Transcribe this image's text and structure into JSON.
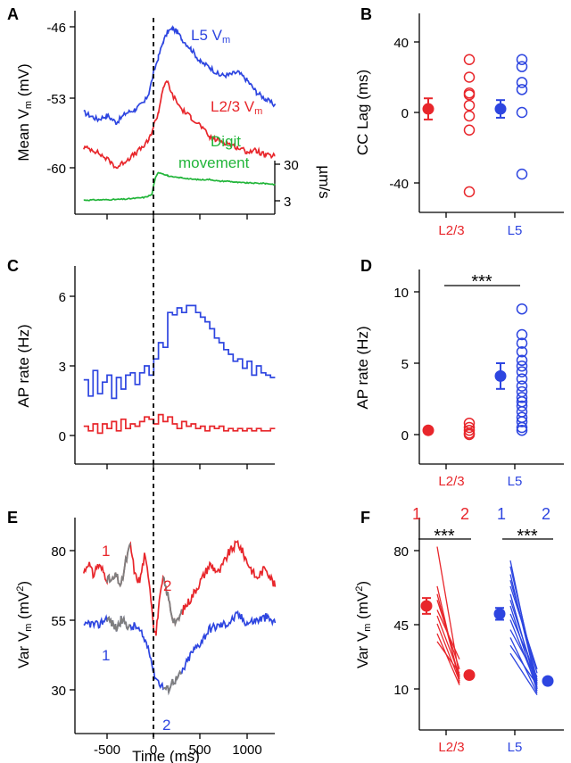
{
  "colors": {
    "red": "#e8262b",
    "blue": "#2d45e0",
    "green": "#22b53a",
    "gray": "#7f7f7f",
    "black": "#000000"
  },
  "panels": {
    "A": {
      "label": "A",
      "ylabel": "Mean V",
      "ylabel_sub": "m",
      "ylabel_unit": " (mV)",
      "yticks": [
        "-46",
        "-53",
        "-60"
      ],
      "right_ticks": [
        "30",
        "3"
      ],
      "right_label": "µm/s",
      "l5": {
        "text": "L5 V",
        "sub": "m"
      },
      "l23": {
        "text": "L2/3 V",
        "sub": "m"
      },
      "digit_line1": "Digit",
      "digit_line2": "movement"
    },
    "B": {
      "label": "B",
      "ylabel": "CC Lag (ms)",
      "yticks": [
        "40",
        "0",
        "-40"
      ],
      "xcats": [
        "L2/3",
        "L5"
      ]
    },
    "C": {
      "label": "C",
      "ylabel": "AP rate (Hz)",
      "yticks": [
        "6",
        "3",
        "0"
      ]
    },
    "D": {
      "label": "D",
      "ylabel": "AP rate (Hz)",
      "yticks": [
        "10",
        "5",
        "0"
      ],
      "xcats": [
        "L2/3",
        "L5"
      ],
      "sig": "***"
    },
    "E": {
      "label": "E",
      "ylabel": "Var V",
      "ylabel_sub": "m",
      "ylabel_unit": " (mV",
      "ylabel_sup": "2",
      "ylabel_end": ")",
      "yticks": [
        "80",
        "55",
        "30"
      ],
      "xticks": [
        "-500",
        "0",
        "500",
        "1000"
      ],
      "xlabel": "Time (ms)",
      "red1": "1",
      "red2": "2",
      "blue1": "1",
      "blue2": "2"
    },
    "F": {
      "label": "F",
      "ylabel": "Var V",
      "ylabel_sub": "m",
      "ylabel_unit": " (mV",
      "ylabel_sup": "2",
      "ylabel_end": ")",
      "yticks": [
        "80",
        "45",
        "10"
      ],
      "xcats": [
        "L2/3",
        "L5"
      ],
      "red1": "1",
      "red2": "2",
      "blue1": "1",
      "blue2": "2",
      "sig_left": "***",
      "sig_right": "***"
    }
  },
  "chart_data": [
    {
      "panel": "A",
      "type": "line",
      "x_range": [
        -750,
        1300
      ],
      "ylabel": "Mean Vm (mV)",
      "right_axis_label": "µm/s",
      "series": [
        {
          "name": "L5 Vm",
          "color": "#2d45e0",
          "x": [
            -750,
            -600,
            -500,
            -400,
            -300,
            -200,
            -100,
            -50,
            0,
            50,
            100,
            150,
            200,
            250,
            300,
            400,
            500,
            600,
            700,
            800,
            900,
            1000,
            1100,
            1200,
            1300
          ],
          "y": [
            -54.5,
            -55.2,
            -54.8,
            -55.5,
            -54.6,
            -54.2,
            -53.5,
            -52.5,
            -50.5,
            -49.0,
            -47.5,
            -46.5,
            -46.2,
            -46.5,
            -47.2,
            -48.2,
            -49.5,
            -50.0,
            -50.8,
            -50.8,
            -50.5,
            -51.3,
            -52.5,
            -53.2,
            -53.8
          ]
        },
        {
          "name": "L2/3 Vm",
          "color": "#e8262b",
          "x": [
            -750,
            -650,
            -550,
            -450,
            -400,
            -300,
            -200,
            -100,
            -50,
            0,
            50,
            100,
            150,
            200,
            300,
            400,
            500,
            600,
            700,
            800,
            900,
            1000,
            1100,
            1200,
            1300
          ],
          "y": [
            -58.0,
            -58.2,
            -58.8,
            -59.5,
            -60.0,
            -59.3,
            -58.6,
            -57.8,
            -57.2,
            -55.8,
            -54.5,
            -52.0,
            -51.5,
            -52.8,
            -54.2,
            -55.0,
            -55.8,
            -57.0,
            -57.3,
            -57.6,
            -58.0,
            -58.4,
            -58.3,
            -58.8,
            -58.8
          ]
        },
        {
          "name": "Digit movement",
          "color": "#22b53a",
          "x": [
            -750,
            -500,
            -300,
            -100,
            -20,
            0,
            20,
            50,
            100,
            150,
            200,
            300,
            400,
            500,
            600,
            700,
            800,
            900,
            1000,
            1100,
            1200,
            1300
          ],
          "y": [
            3.5,
            3.8,
            4.2,
            5.5,
            7.5,
            15,
            20,
            24,
            23,
            21.5,
            20.5,
            20,
            19,
            18.5,
            18.8,
            17.5,
            17.5,
            16.5,
            16.2,
            16,
            15.8,
            15
          ]
        }
      ]
    },
    {
      "panel": "B",
      "type": "scatter",
      "categories": [
        "L2/3",
        "L5"
      ],
      "ylabel": "CC Lag (ms)",
      "ylim": [
        -55,
        55
      ],
      "series": [
        {
          "name": "L2/3",
          "color": "#e8262b",
          "mean": 2,
          "sem": 6,
          "points": [
            30,
            20,
            11,
            10,
            4,
            -2,
            -10,
            -45
          ]
        },
        {
          "name": "L5",
          "color": "#2d45e0",
          "mean": 2,
          "sem": 5,
          "points": [
            30,
            26,
            17,
            13,
            0,
            -35
          ]
        }
      ]
    },
    {
      "panel": "C",
      "type": "line",
      "step": true,
      "x_range": [
        -750,
        1300
      ],
      "ylabel": "AP rate (Hz)",
      "ylim": [
        -1.2,
        7.2
      ],
      "series": [
        {
          "name": "L5",
          "color": "#2d45e0",
          "bin_width": 50,
          "values": [
            2.4,
            1.7,
            2.8,
            1.8,
            2.3,
            2.6,
            1.6,
            2.5,
            2.0,
            2.6,
            2.7,
            2.2,
            2.7,
            3.0,
            2.6,
            3.3,
            4.0,
            3.8,
            5.3,
            5.2,
            5.5,
            5.3,
            5.6,
            5.6,
            5.3,
            5.1,
            4.9,
            4.6,
            4.2,
            4.0,
            3.7,
            3.5,
            3.2,
            3.3,
            2.9,
            3.2,
            2.6,
            3.0,
            2.7,
            2.6,
            2.5
          ]
        },
        {
          "name": "L2/3",
          "color": "#e8262b",
          "bin_width": 50,
          "values": [
            0.4,
            0.2,
            0.5,
            0.1,
            0.5,
            0.3,
            0.6,
            0.2,
            0.7,
            0.3,
            0.5,
            0.4,
            0.6,
            0.8,
            0.7,
            0.5,
            0.9,
            0.6,
            0.8,
            0.5,
            0.3,
            0.6,
            0.4,
            0.5,
            0.3,
            0.4,
            0.2,
            0.4,
            0.3,
            0.4,
            0.2,
            0.3,
            0.2,
            0.3,
            0.2,
            0.3,
            0.2,
            0.3,
            0.2,
            0.2,
            0.3
          ]
        }
      ]
    },
    {
      "panel": "D",
      "type": "scatter",
      "categories": [
        "L2/3",
        "L5"
      ],
      "ylabel": "AP rate (Hz)",
      "ylim": [
        -2,
        12
      ],
      "significance": "***",
      "series": [
        {
          "name": "L2/3",
          "color": "#e8262b",
          "mean": 0.3,
          "sem": 0.1,
          "points": [
            0.8,
            0.5,
            0.3,
            0.1,
            0.0
          ]
        },
        {
          "name": "L5",
          "color": "#2d45e0",
          "mean": 4.1,
          "sem": 0.9,
          "points": [
            8.8,
            7.0,
            6.4,
            5.8,
            5.2,
            4.8,
            4.4,
            3.9,
            3.4,
            3.0,
            2.6,
            2.3,
            2.0,
            1.6,
            1.2,
            0.9,
            0.5,
            0.3
          ]
        }
      ]
    },
    {
      "panel": "E",
      "type": "line",
      "x_range": [
        -750,
        1300
      ],
      "xlabel": "Time (ms)",
      "ylabel": "Var Vm (mV²)",
      "ylim": [
        20,
        90
      ],
      "series": [
        {
          "name": "L2/3",
          "color": "#e8262b",
          "x": [
            -750,
            -700,
            -650,
            -600,
            -550,
            -500,
            -450,
            -400,
            -350,
            -300,
            -250,
            -200,
            -150,
            -100,
            -50,
            0,
            25,
            50,
            100,
            150,
            200,
            250,
            300,
            400,
            500,
            600,
            700,
            800,
            900,
            1000,
            1100,
            1200,
            1300
          ],
          "y": [
            72,
            76,
            71,
            75,
            73,
            70,
            69,
            71,
            67,
            76,
            82,
            71,
            69,
            78,
            70,
            53,
            50,
            59,
            70,
            64,
            56,
            54,
            58,
            63,
            69,
            75,
            72,
            79,
            83,
            76,
            70,
            74,
            67
          ]
        },
        {
          "name": "L5",
          "color": "#2d45e0",
          "x": [
            -750,
            -700,
            -600,
            -500,
            -450,
            -400,
            -350,
            -300,
            -250,
            -200,
            -150,
            -100,
            -50,
            0,
            50,
            100,
            150,
            200,
            250,
            300,
            400,
            500,
            600,
            700,
            800,
            900,
            1000,
            1100,
            1200,
            1300
          ],
          "y": [
            52,
            54,
            53,
            56,
            54,
            52,
            55,
            54,
            52,
            53,
            51,
            48,
            45,
            36,
            33,
            31,
            30,
            33,
            34,
            36,
            43,
            47,
            52,
            53,
            54,
            57,
            54,
            55,
            56,
            54
          ]
        }
      ],
      "gray_segments": [
        {
          "series": "L2/3",
          "x_range": [
            -500,
            -250
          ]
        },
        {
          "series": "L2/3",
          "x_range": [
            100,
            300
          ]
        },
        {
          "series": "L5",
          "x_range": [
            -500,
            -250
          ]
        },
        {
          "series": "L5",
          "x_range": [
            100,
            300
          ]
        }
      ]
    },
    {
      "panel": "F",
      "type": "scatter",
      "categories": [
        "L2/3",
        "L5"
      ],
      "ylabel": "Var Vm (mV²)",
      "ylim": [
        0,
        95
      ],
      "pairs": [
        {
          "name": "L2/3",
          "color": "#e8262b",
          "mean1": 52,
          "sem1": 4,
          "mean2": 17,
          "sem2": 1.5,
          "values1": [
            82,
            62,
            58,
            55,
            50,
            47,
            43,
            38,
            34
          ],
          "values2": [
            16,
            13,
            15,
            20,
            25,
            17,
            14,
            12,
            18
          ],
          "significance": "***"
        },
        {
          "name": "L5",
          "color": "#2d45e0",
          "mean1": 48,
          "sem1": 3,
          "mean2": 14,
          "sem2": 1.5,
          "values1": [
            75,
            72,
            68,
            65,
            62,
            58,
            55,
            52,
            48,
            45,
            40,
            36,
            32,
            28
          ],
          "values2": [
            10,
            14,
            12,
            18,
            20,
            10,
            13,
            9,
            16,
            11,
            15,
            8,
            12,
            7
          ],
          "significance": "***"
        }
      ]
    }
  ]
}
